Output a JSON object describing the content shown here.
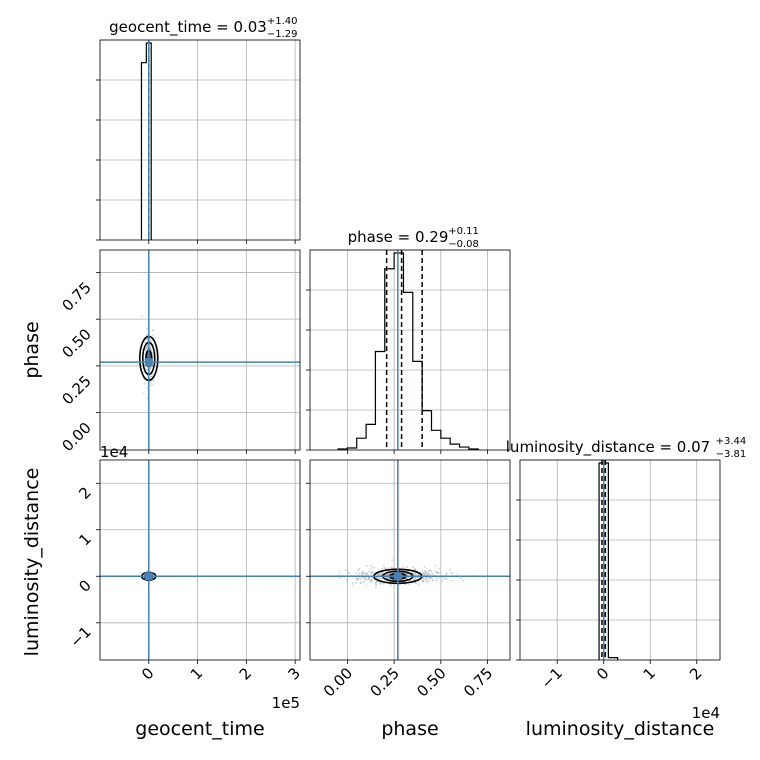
{
  "chart_data": [
    {
      "type": "histogram",
      "parameter": "geocent_time",
      "title": "geocent_time = 0.03",
      "title_sup": "+1.40",
      "title_sub": "−1.29",
      "xlim": [
        -100000,
        310000
      ],
      "bin_edges": [
        -15000,
        -5000,
        5000
      ],
      "counts": [
        0.9,
        1.0
      ],
      "quantiles": [
        -1.29,
        0.03,
        1.4
      ],
      "truth": 0
    },
    {
      "type": "scatter",
      "x": "geocent_time",
      "y": "phase",
      "xlim": [
        -100000,
        310000
      ],
      "ylim": [
        -0.2,
        0.87
      ],
      "yticks": [
        {
          "v": 0.0,
          "label": "0.00"
        },
        {
          "v": 0.25,
          "label": "0.25"
        },
        {
          "v": 0.5,
          "label": "0.50"
        },
        {
          "v": 0.75,
          "label": "0.75"
        }
      ],
      "ylabel": "phase",
      "truth": [
        0,
        0.27
      ]
    },
    {
      "type": "histogram",
      "parameter": "phase",
      "title": "phase = 0.29",
      "title_sup": "+0.11",
      "title_sub": "−0.08",
      "xlim": [
        -0.2,
        0.87
      ],
      "bin_edges": [
        -0.05,
        0.0,
        0.05,
        0.1,
        0.15,
        0.2,
        0.25,
        0.3,
        0.35,
        0.4,
        0.45,
        0.5,
        0.55,
        0.6,
        0.65,
        0.7
      ],
      "counts": [
        0.005,
        0.01,
        0.06,
        0.13,
        0.5,
        0.92,
        1.0,
        0.8,
        0.45,
        0.2,
        0.1,
        0.06,
        0.03,
        0.015,
        0.005
      ],
      "quantiles": [
        0.21,
        0.29,
        0.4
      ],
      "truth": 0.27
    },
    {
      "type": "scatter",
      "x": "geocent_time",
      "y": "luminosity_distance",
      "xlim": [
        -100000,
        310000
      ],
      "ylim": [
        -18000,
        25000
      ],
      "yticks": [
        {
          "v": -10000,
          "label": "−1"
        },
        {
          "v": 0,
          "label": "0"
        },
        {
          "v": 10000,
          "label": "1"
        },
        {
          "v": 20000,
          "label": "2"
        }
      ],
      "xticks": [
        {
          "v": 0,
          "label": "0"
        },
        {
          "v": 100000,
          "label": "1"
        },
        {
          "v": 200000,
          "label": "2"
        },
        {
          "v": 300000,
          "label": "3"
        }
      ],
      "ylabel": "luminosity_distance",
      "xlabel": "geocent_time",
      "y_offset_label": "1e4",
      "x_offset_label": "1e5",
      "truth": [
        0,
        0
      ]
    },
    {
      "type": "scatter",
      "x": "phase",
      "y": "luminosity_distance",
      "xlim": [
        -0.2,
        0.87
      ],
      "ylim": [
        -18000,
        25000
      ],
      "xticks": [
        {
          "v": 0.0,
          "label": "0.00"
        },
        {
          "v": 0.25,
          "label": "0.25"
        },
        {
          "v": 0.5,
          "label": "0.50"
        },
        {
          "v": 0.75,
          "label": "0.75"
        }
      ],
      "xlabel": "phase",
      "truth": [
        0.27,
        0
      ]
    },
    {
      "type": "histogram",
      "parameter": "luminosity_distance",
      "title": "luminosity_distance = 0.07",
      "title_sup": "+3.44",
      "title_sub": "−3.81",
      "xlim": [
        -18000,
        25000
      ],
      "bin_edges": [
        -1000,
        1000,
        3000
      ],
      "counts": [
        1.0,
        0.012
      ],
      "quantiles": [
        -380,
        7,
        344
      ],
      "xticks": [
        {
          "v": -10000,
          "label": "−1"
        },
        {
          "v": 0,
          "label": "0"
        },
        {
          "v": 10000,
          "label": "1"
        },
        {
          "v": 20000,
          "label": "2"
        }
      ],
      "xlabel": "luminosity_distance",
      "x_offset_label": "1e4",
      "truth": 0
    }
  ],
  "colors": {
    "truth": "#4682b4",
    "hist": "#000000",
    "grid": "#b0b0b0",
    "samples": "#a0a0a0"
  }
}
